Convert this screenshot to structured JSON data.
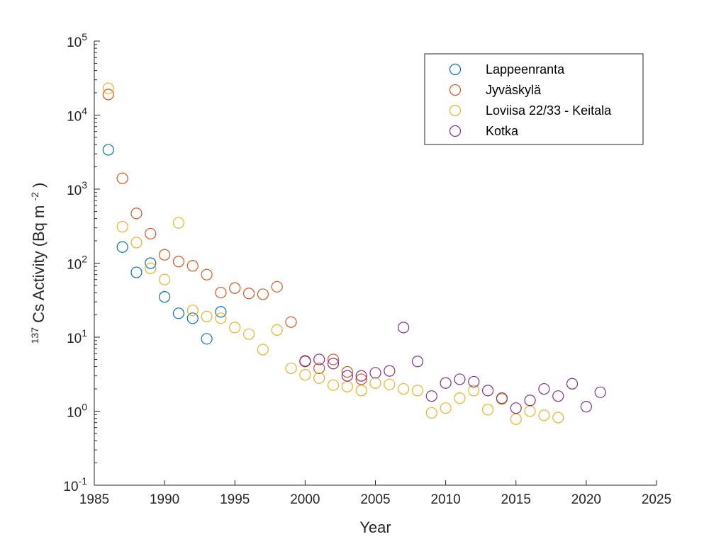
{
  "chart_data": {
    "type": "scatter",
    "xlabel": "Year",
    "ylabel": {
      "prefix_sup": "137",
      "main": "Cs Activity (Bq m",
      "sup": "-2",
      "suffix": ")"
    },
    "xlim": [
      1985,
      2025
    ],
    "ylim": [
      0.1,
      100000
    ],
    "yscale": "log",
    "x_ticks": [
      1985,
      1990,
      1995,
      2000,
      2005,
      2010,
      2015,
      2020,
      2025
    ],
    "y_ticks": [
      {
        "value": 0.1,
        "base": "10",
        "exp": "-1"
      },
      {
        "value": 1,
        "base": "10",
        "exp": "0"
      },
      {
        "value": 10,
        "base": "10",
        "exp": "1"
      },
      {
        "value": 100,
        "base": "10",
        "exp": "2"
      },
      {
        "value": 1000,
        "base": "10",
        "exp": "3"
      },
      {
        "value": 10000,
        "base": "10",
        "exp": "4"
      },
      {
        "value": 100000,
        "base": "10",
        "exp": "5"
      }
    ],
    "grid": false,
    "legend_position": "top-right",
    "series": [
      {
        "name": "Lappeenranta",
        "color": "#0072BD",
        "points": [
          [
            1986,
            3400
          ],
          [
            1987,
            165
          ],
          [
            1988,
            75
          ],
          [
            1989,
            100
          ],
          [
            1990,
            35
          ],
          [
            1991,
            21
          ],
          [
            1992,
            18
          ],
          [
            1993,
            9.5
          ],
          [
            1994,
            22
          ]
        ]
      },
      {
        "name": "Jyväskylä",
        "color": "#D95319",
        "points": [
          [
            1986,
            19000
          ],
          [
            1987,
            1400
          ],
          [
            1988,
            470
          ],
          [
            1989,
            250
          ],
          [
            1990,
            130
          ],
          [
            1991,
            105
          ],
          [
            1992,
            92
          ],
          [
            1993,
            70
          ],
          [
            1994,
            40
          ],
          [
            1995,
            46
          ],
          [
            1996,
            39
          ],
          [
            1997,
            38
          ],
          [
            1998,
            48
          ],
          [
            1999,
            16
          ],
          [
            2000,
            4.8
          ],
          [
            2001,
            3.8
          ],
          [
            2002,
            5.0
          ],
          [
            2003,
            3.4
          ],
          [
            2004,
            2.7
          ]
        ]
      },
      {
        "name": "Loviisa 22/33 - Keitala",
        "color": "#EDB120",
        "points": [
          [
            1986,
            23000
          ],
          [
            1987,
            310
          ],
          [
            1988,
            190
          ],
          [
            1989,
            85
          ],
          [
            1990,
            60
          ],
          [
            1991,
            350
          ],
          [
            1992,
            23
          ],
          [
            1993,
            19
          ],
          [
            1994,
            18
          ],
          [
            1995,
            13.5
          ],
          [
            1996,
            11
          ],
          [
            1997,
            6.8
          ],
          [
            1998,
            12.5
          ],
          [
            1999,
            3.8
          ],
          [
            2000,
            3.1
          ],
          [
            2001,
            2.8
          ],
          [
            2002,
            2.25
          ],
          [
            2003,
            2.15
          ],
          [
            2004,
            1.9
          ],
          [
            2005,
            2.4
          ],
          [
            2006,
            2.3
          ],
          [
            2007,
            2.0
          ],
          [
            2008,
            1.9
          ],
          [
            2009,
            0.95
          ],
          [
            2010,
            1.1
          ],
          [
            2011,
            1.5
          ],
          [
            2012,
            1.9
          ],
          [
            2013,
            1.05
          ],
          [
            2014,
            1.45
          ],
          [
            2015,
            0.78
          ],
          [
            2016,
            1.0
          ],
          [
            2017,
            0.88
          ],
          [
            2018,
            0.82
          ]
        ]
      },
      {
        "name": "Kotka",
        "color": "#7E2F8E",
        "points": [
          [
            2000,
            4.7
          ],
          [
            2001,
            5.0
          ],
          [
            2002,
            4.4
          ],
          [
            2003,
            3.0
          ],
          [
            2004,
            3.0
          ],
          [
            2005,
            3.3
          ],
          [
            2006,
            3.5
          ],
          [
            2007,
            13.5
          ],
          [
            2008,
            4.7
          ],
          [
            2009,
            1.6
          ],
          [
            2010,
            2.4
          ],
          [
            2011,
            2.7
          ],
          [
            2012,
            2.5
          ],
          [
            2013,
            1.9
          ],
          [
            2014,
            1.5
          ],
          [
            2015,
            1.1
          ],
          [
            2016,
            1.4
          ],
          [
            2017,
            2.0
          ],
          [
            2018,
            1.6
          ],
          [
            2019,
            2.35
          ],
          [
            2020,
            1.15
          ],
          [
            2021,
            1.8
          ]
        ]
      }
    ]
  }
}
